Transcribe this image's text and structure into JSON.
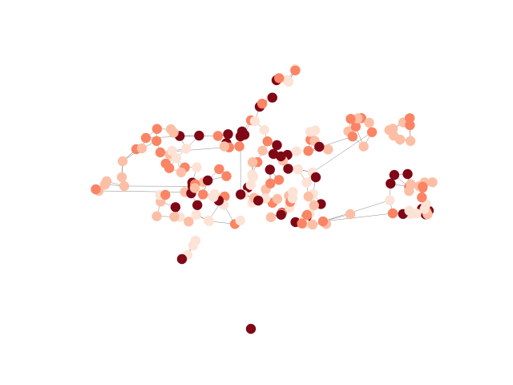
{
  "graph": {
    "edge_color": "#555555",
    "node_palette": {
      "dark": "#7f0716",
      "coral": "#fb8464",
      "peach": "#fcbfa6",
      "pale": "#fde3d6"
    },
    "clusters": [
      {
        "id": "upper-arm",
        "count": 14,
        "tones": [
          "pale",
          "coral",
          "dark"
        ]
      },
      {
        "id": "left-wing",
        "count": 12,
        "tones": [
          "coral",
          "peach"
        ]
      },
      {
        "id": "core",
        "count": 110,
        "tones": [
          "dark",
          "coral",
          "peach",
          "pale"
        ]
      },
      {
        "id": "right-upper",
        "count": 18,
        "tones": [
          "coral",
          "peach"
        ]
      },
      {
        "id": "right-lower",
        "count": 24,
        "tones": [
          "dark",
          "coral",
          "peach",
          "pale"
        ]
      },
      {
        "id": "lower-tail",
        "count": 6,
        "tones": [
          "dark",
          "pale"
        ]
      },
      {
        "id": "isolate",
        "count": 1,
        "tones": [
          "dark"
        ]
      }
    ]
  }
}
